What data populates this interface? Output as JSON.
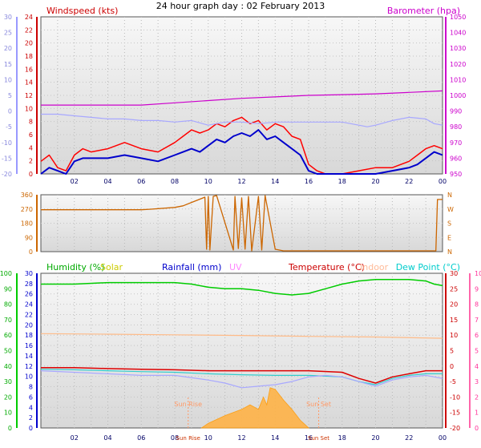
{
  "chart_data": [
    {
      "type": "line",
      "panel": "wind-baro",
      "title": "24 hour graph day : 02 February 2013",
      "x_ticks": [
        "02",
        "04",
        "06",
        "08",
        "10",
        "12",
        "14",
        "16",
        "18",
        "20",
        "22",
        "00"
      ],
      "left_outer_axis": {
        "ylim": [
          -20,
          30
        ],
        "ticks": [
          "30",
          "25",
          "20",
          "15",
          "10",
          "5",
          "0",
          "-5",
          "-10",
          "-15",
          "-20"
        ]
      },
      "left_axis": {
        "label": "Windspeed (kts)",
        "ylim": [
          0,
          25
        ],
        "ticks": [
          "24",
          "22",
          "20",
          "18",
          "16",
          "14",
          "12",
          "10",
          "8",
          "6",
          "4",
          "2",
          "0"
        ]
      },
      "right_axis": {
        "label": "Barometer (hpa)",
        "ylim": [
          945,
          1050
        ],
        "ticks": [
          "1050",
          "1040",
          "1030",
          "1020",
          "1010",
          "1000",
          "990",
          "980",
          "970",
          "960",
          "950"
        ]
      },
      "series": [
        {
          "name": "Windspeed (kts)",
          "color": "#ff0000",
          "axis": "left",
          "x": [
            0,
            0.5,
            1,
            1.5,
            2,
            2.5,
            3,
            4,
            5,
            6,
            7,
            8,
            8.5,
            9,
            9.5,
            10,
            10.5,
            11,
            11.5,
            12,
            12.5,
            13,
            13.5,
            14,
            14.5,
            15,
            15.5,
            16,
            16.5,
            17,
            18,
            19,
            20,
            21,
            22,
            22.5,
            23,
            23.5,
            24
          ],
          "y": [
            2,
            3,
            1,
            0.5,
            3,
            4,
            3.5,
            4,
            5,
            4,
            3.5,
            5,
            6,
            7,
            6.5,
            7,
            8,
            7.5,
            8.5,
            9,
            8,
            8.5,
            7,
            8,
            7.5,
            6,
            5.5,
            1.5,
            0.5,
            0,
            0,
            0.5,
            1,
            1,
            2,
            3,
            4,
            4.5,
            4
          ]
        },
        {
          "name": "Gust",
          "color": "#0000cc",
          "axis": "left",
          "x": [
            0,
            0.5,
            1,
            1.5,
            2,
            2.5,
            3,
            4,
            5,
            6,
            7,
            8,
            8.5,
            9,
            9.5,
            10,
            10.5,
            11,
            11.5,
            12,
            12.5,
            13,
            13.5,
            14,
            14.5,
            15,
            15.5,
            16,
            16.5,
            17,
            18,
            19,
            20,
            21,
            22,
            22.5,
            23,
            23.5,
            24
          ],
          "y": [
            0,
            1,
            0.5,
            0,
            2,
            2.5,
            2.5,
            2.5,
            3,
            2.5,
            2,
            3,
            3.5,
            4,
            3.5,
            4.5,
            5.5,
            5,
            6,
            6.5,
            6,
            7,
            5.5,
            6,
            5,
            4,
            3,
            0.5,
            0,
            0,
            0,
            0,
            0,
            0.5,
            1,
            1.5,
            2.5,
            3.5,
            3
          ]
        },
        {
          "name": "Barometer (hpa)",
          "color": "#cc00cc",
          "axis": "right",
          "x": [
            0,
            2,
            4,
            6,
            8,
            10,
            12,
            14,
            16,
            18,
            20,
            22,
            24
          ],
          "y": [
            991,
            991,
            991,
            991,
            992.5,
            994,
            995.5,
            996.5,
            997.5,
            998,
            998.5,
            999.5,
            1000.5
          ]
        },
        {
          "name": "Windchill",
          "color": "#a8a8ff",
          "axis": "left_outer",
          "x": [
            0,
            1,
            2,
            3,
            4,
            5,
            6,
            7,
            8,
            9,
            10,
            11,
            12,
            13,
            14,
            15,
            16,
            17,
            18,
            19,
            19.5,
            20,
            21,
            22,
            23,
            23.5,
            24
          ],
          "y": [
            -1,
            -1,
            -1.5,
            -2,
            -2.5,
            -2.5,
            -3,
            -3,
            -3.5,
            -3,
            -4.5,
            -3.5,
            -3.5,
            -4,
            -3.5,
            -3.5,
            -3.5,
            -3.5,
            -3.5,
            -4.5,
            -5,
            -4.5,
            -3,
            -2,
            -2.5,
            -4,
            -4.5
          ]
        }
      ]
    },
    {
      "type": "line",
      "panel": "wind-direction",
      "left_axis": {
        "ylim": [
          0,
          360
        ],
        "ticks": [
          "360",
          "270",
          "180",
          "90",
          "0"
        ]
      },
      "right_axis": {
        "ticks": [
          "N",
          "W",
          "S",
          "E",
          "N"
        ]
      },
      "series": [
        {
          "name": "Wind direction",
          "color": "#cc6600",
          "x": [
            0,
            6,
            6.5,
            8,
            8.5,
            9.8,
            9.9,
            10,
            10.1,
            10.3,
            10.5,
            11.5,
            11.6,
            11.8,
            12,
            12.2,
            12.4,
            12.6,
            13,
            13.2,
            13.4,
            14,
            14.5,
            16,
            18,
            20,
            22,
            23.6,
            23.7,
            24
          ],
          "y": [
            265,
            265,
            268,
            280,
            290,
            345,
            15,
            350,
            10,
            350,
            355,
            10,
            350,
            20,
            340,
            15,
            350,
            5,
            350,
            10,
            355,
            15,
            5,
            5,
            5,
            5,
            5,
            5,
            330,
            330
          ]
        }
      ]
    },
    {
      "type": "line",
      "panel": "temp-humidity",
      "legend": [
        "Humidity (%)",
        "Solar",
        "Rainfall (mm)",
        "UV",
        "Temperature (°C)",
        "Indoor",
        "Dew Point (°C)"
      ],
      "x_ticks": [
        "02",
        "04",
        "06",
        "08",
        "Sun Rise",
        "10",
        "12",
        "14",
        "16",
        "Sun Set",
        "18",
        "20",
        "22",
        "00"
      ],
      "annotations": [
        "Sun Rise",
        "Sun Set"
      ],
      "humidity_axis": {
        "label": "Humidity (%)",
        "ylim": [
          0,
          100
        ],
        "ticks": [
          "100",
          "90",
          "80",
          "70",
          "60",
          "50",
          "40",
          "30",
          "20",
          "10",
          "0"
        ]
      },
      "rainfall_axis": {
        "label": "Rainfall (mm)",
        "ylim": [
          0,
          30
        ],
        "ticks": [
          "30",
          "28",
          "26",
          "24",
          "22",
          "20",
          "18",
          "16",
          "14",
          "12",
          "10",
          "8",
          "6",
          "4",
          "2",
          "0"
        ]
      },
      "temp_axis": {
        "label": "Temperature (°C)",
        "ylim": [
          -20,
          30
        ],
        "ticks": [
          "30",
          "25",
          "20",
          "15",
          "10",
          "5",
          "0",
          "-5",
          "-10",
          "-15",
          "-20"
        ]
      },
      "uv_axis": {
        "label": "UV",
        "ylim": [
          0,
          10
        ],
        "ticks": [
          "10",
          "9",
          "8",
          "7",
          "6",
          "5",
          "4",
          "3",
          "2",
          "1",
          "0"
        ]
      },
      "series": [
        {
          "name": "Humidity (%)",
          "color": "#00cc00",
          "axis": "humidity",
          "x": [
            0,
            2,
            4,
            6,
            8,
            9,
            10,
            11,
            12,
            13,
            14,
            15,
            16,
            17,
            18,
            19,
            20,
            21,
            22,
            23,
            23.5,
            24
          ],
          "y": [
            93,
            93,
            94,
            94,
            94,
            93,
            91,
            90,
            90,
            89,
            87,
            86,
            87,
            90,
            93,
            95,
            96,
            96,
            96,
            95,
            93,
            92
          ]
        },
        {
          "name": "Indoor",
          "color": "#ffbb88",
          "axis": "temp",
          "x": [
            0,
            4,
            8,
            12,
            16,
            20,
            24
          ],
          "y": [
            10.5,
            10.3,
            10.1,
            9.9,
            9.6,
            9.4,
            9
          ]
        },
        {
          "name": "Temperature (°C)",
          "color": "#dd0000",
          "axis": "temp",
          "x": [
            0,
            2,
            4,
            6,
            8,
            10,
            12,
            14,
            16,
            18,
            19,
            20,
            21,
            22,
            23,
            24
          ],
          "y": [
            -0.5,
            -0.5,
            -0.8,
            -1,
            -1.2,
            -1.5,
            -1.5,
            -1.5,
            -1.5,
            -2,
            -4,
            -5.5,
            -3.5,
            -2.5,
            -1.5,
            -1.5
          ]
        },
        {
          "name": "Dew Point (°C)",
          "color": "#33cccc",
          "axis": "temp",
          "x": [
            0,
            2,
            4,
            6,
            8,
            10,
            12,
            14,
            16,
            18,
            19,
            20,
            21,
            22,
            23,
            24
          ],
          "y": [
            -1,
            -1.2,
            -1.5,
            -1.8,
            -2,
            -2.5,
            -2.8,
            -3,
            -3,
            -3.5,
            -5,
            -6,
            -4,
            -3,
            -2.5,
            -2.5
          ]
        },
        {
          "name": "Windchill",
          "color": "#a8a8ff",
          "axis": "temp",
          "x": [
            0,
            2,
            4,
            6,
            8,
            10,
            11,
            12,
            13,
            14,
            15,
            16,
            17,
            18,
            19,
            20,
            21,
            22,
            23,
            24
          ],
          "y": [
            -1.5,
            -2,
            -2.5,
            -3,
            -3,
            -4.5,
            -5.5,
            -7,
            -6.5,
            -6,
            -5,
            -3.5,
            -3,
            -3.5,
            -5,
            -6.5,
            -4.5,
            -3.5,
            -3,
            -4
          ]
        },
        {
          "name": "Solar",
          "color": "#ffaa33",
          "axis": "uv",
          "x": [
            9.6,
            10,
            11,
            12,
            12.5,
            13,
            13.3,
            13.5,
            13.7,
            14,
            14.5,
            15,
            15.5,
            16
          ],
          "y": [
            0,
            0.3,
            0.8,
            1.2,
            1.5,
            1.2,
            2,
            1.5,
            2.6,
            2.5,
            1.8,
            1.2,
            0.5,
            0
          ]
        }
      ]
    }
  ]
}
